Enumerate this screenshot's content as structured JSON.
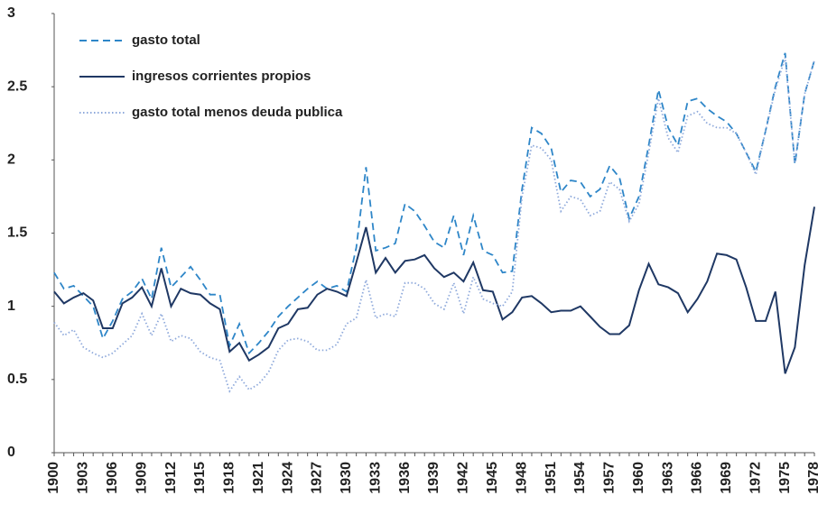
{
  "chart_data": {
    "type": "line",
    "categories": [
      "1900",
      null,
      null,
      "1903",
      null,
      null,
      "1906",
      null,
      null,
      "1909",
      null,
      null,
      "1912",
      null,
      null,
      "1915",
      null,
      null,
      "1918",
      null,
      null,
      "1921",
      null,
      null,
      "1924",
      null,
      null,
      "1927",
      null,
      null,
      "1930",
      null,
      null,
      "1933",
      null,
      null,
      "1936",
      null,
      null,
      "1939",
      null,
      null,
      "1942",
      null,
      null,
      "1945",
      null,
      null,
      "1948",
      null,
      null,
      "1951",
      null,
      null,
      "1954",
      null,
      null,
      "1957",
      null,
      null,
      "1960",
      null,
      null,
      "1963",
      null,
      null,
      "1966",
      null,
      null,
      "1969",
      null,
      null,
      "1972",
      null,
      null,
      "1975",
      null,
      null,
      "1978"
    ],
    "series": [
      {
        "name": "gasto total",
        "color": "#2E86C8",
        "dash": "dashed",
        "values": [
          1.23,
          1.12,
          1.14,
          1.07,
          1.0,
          0.78,
          0.9,
          1.05,
          1.1,
          1.19,
          1.05,
          1.4,
          1.13,
          1.2,
          1.27,
          1.18,
          1.08,
          1.08,
          0.73,
          0.88,
          0.68,
          0.75,
          0.83,
          0.93,
          1.0,
          1.06,
          1.12,
          1.17,
          1.12,
          1.14,
          1.1,
          1.4,
          1.95,
          1.38,
          1.4,
          1.43,
          1.7,
          1.65,
          1.55,
          1.44,
          1.4,
          1.62,
          1.35,
          1.62,
          1.38,
          1.35,
          1.23,
          1.24,
          1.8,
          2.22,
          2.18,
          2.08,
          1.78,
          1.86,
          1.85,
          1.75,
          1.8,
          1.96,
          1.88,
          1.6,
          1.75,
          2.1,
          2.48,
          2.22,
          2.1,
          2.4,
          2.42,
          2.35,
          2.3,
          2.26,
          2.18,
          2.05,
          1.92,
          2.2,
          2.5,
          2.73,
          1.97,
          2.45,
          2.68
        ]
      },
      {
        "name": "ingresos corrientes propios",
        "color": "#1F3864",
        "dash": "solid",
        "values": [
          1.1,
          1.02,
          1.06,
          1.09,
          1.04,
          0.85,
          0.85,
          1.02,
          1.06,
          1.13,
          1.0,
          1.26,
          1.0,
          1.12,
          1.09,
          1.08,
          1.02,
          0.98,
          0.69,
          0.75,
          0.63,
          0.67,
          0.72,
          0.85,
          0.88,
          0.98,
          0.99,
          1.08,
          1.12,
          1.1,
          1.07,
          1.3,
          1.54,
          1.23,
          1.33,
          1.23,
          1.31,
          1.32,
          1.35,
          1.26,
          1.2,
          1.23,
          1.17,
          1.3,
          1.11,
          1.1,
          0.91,
          0.96,
          1.06,
          1.07,
          1.02,
          0.96,
          0.97,
          0.97,
          1.0,
          0.93,
          0.86,
          0.81,
          0.81,
          0.87,
          1.11,
          1.29,
          1.15,
          1.13,
          1.09,
          0.96,
          1.05,
          1.17,
          1.36,
          1.35,
          1.32,
          1.13,
          0.9,
          0.9,
          1.1,
          0.54,
          0.72,
          1.28,
          1.68
        ]
      },
      {
        "name": "gasto total menos deuda publica",
        "color": "#8EA9DB",
        "dash": "dotted",
        "values": [
          0.89,
          0.8,
          0.84,
          0.72,
          0.68,
          0.65,
          0.68,
          0.74,
          0.8,
          0.95,
          0.8,
          0.95,
          0.76,
          0.8,
          0.78,
          0.69,
          0.65,
          0.63,
          0.42,
          0.52,
          0.43,
          0.47,
          0.55,
          0.7,
          0.77,
          0.78,
          0.76,
          0.7,
          0.7,
          0.74,
          0.88,
          0.92,
          1.18,
          0.92,
          0.95,
          0.93,
          1.16,
          1.16,
          1.12,
          1.02,
          0.98,
          1.16,
          0.95,
          1.2,
          1.05,
          1.02,
          1.0,
          1.1,
          1.75,
          2.1,
          2.08,
          2.0,
          1.65,
          1.75,
          1.73,
          1.62,
          1.65,
          1.85,
          1.8,
          1.58,
          1.7,
          2.05,
          2.42,
          2.15,
          2.05,
          2.3,
          2.33,
          2.25,
          2.22,
          2.22,
          2.18,
          2.05,
          1.9,
          2.2,
          2.48,
          2.7,
          1.98,
          2.45,
          2.68
        ]
      }
    ],
    "ylim": [
      0,
      3
    ],
    "yticks": [
      0,
      0.5,
      1,
      1.5,
      2,
      2.5,
      3
    ],
    "grid": false,
    "legend": "top-left"
  }
}
